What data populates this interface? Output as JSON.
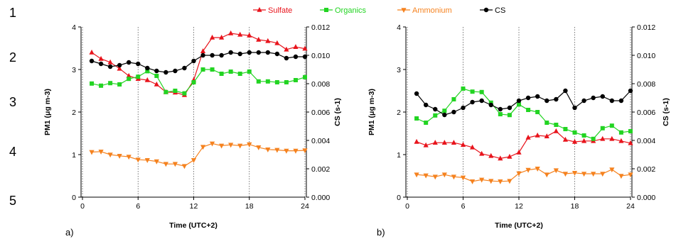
{
  "row_numbers": [
    "1",
    "2",
    "3",
    "4",
    "5"
  ],
  "legend": [
    {
      "key": "sulfate",
      "label": "Sulfate",
      "color": "#e8141c",
      "marker": "triangle-up"
    },
    {
      "key": "organics",
      "label": "Organics",
      "color": "#22d422",
      "marker": "square"
    },
    {
      "key": "ammonium",
      "label": "Ammonium",
      "color": "#f5821f",
      "marker": "triangle-down"
    },
    {
      "key": "cs",
      "label": "CS",
      "color": "#000000",
      "marker": "circle"
    }
  ],
  "chart_data": [
    {
      "type": "line",
      "panel_label": "a)",
      "xlabel": "Time (UTC+2)",
      "ylabel_left": "PM1 (μg m-3)",
      "ylabel_right": "CS (s-1)",
      "xlim": [
        0,
        24
      ],
      "ylim_left": [
        0,
        4
      ],
      "ylim_right": [
        0,
        0.012
      ],
      "x_ticks": [
        "0",
        "6",
        "12",
        "18",
        "24"
      ],
      "y_ticks_left": [
        "0",
        "1",
        "2",
        "3",
        "4"
      ],
      "y_ticks_right": [
        "0.000",
        "0.002",
        "0.004",
        "0.006",
        "0.008",
        "0.010",
        "0.012"
      ],
      "vertical_dotted_lines_at": [
        6,
        12,
        18,
        24
      ],
      "x": [
        1,
        2,
        3,
        4,
        5,
        6,
        7,
        8,
        9,
        10,
        11,
        12,
        13,
        14,
        15,
        16,
        17,
        18,
        19,
        20,
        21,
        22,
        23,
        24
      ],
      "series": [
        {
          "name": "Sulfate",
          "axis": "left",
          "values": [
            3.4,
            3.25,
            3.17,
            3.02,
            2.85,
            2.78,
            2.75,
            2.65,
            2.47,
            2.46,
            2.4,
            2.75,
            3.43,
            3.75,
            3.75,
            3.85,
            3.82,
            3.8,
            3.7,
            3.67,
            3.62,
            3.47,
            3.53,
            3.49
          ]
        },
        {
          "name": "Organics",
          "axis": "left",
          "values": [
            2.67,
            2.62,
            2.68,
            2.65,
            2.78,
            2.83,
            2.96,
            2.85,
            2.47,
            2.5,
            2.44,
            2.7,
            3.0,
            3.0,
            2.9,
            2.95,
            2.9,
            2.95,
            2.72,
            2.72,
            2.7,
            2.7,
            2.75,
            2.82
          ]
        },
        {
          "name": "Ammonium",
          "axis": "left",
          "values": [
            1.06,
            1.07,
            1.0,
            0.97,
            0.95,
            0.88,
            0.87,
            0.84,
            0.78,
            0.78,
            0.73,
            0.87,
            1.18,
            1.26,
            1.21,
            1.23,
            1.21,
            1.24,
            1.17,
            1.12,
            1.11,
            1.09,
            1.09,
            1.1
          ]
        },
        {
          "name": "CS",
          "axis": "right",
          "values": [
            0.0096,
            0.0094,
            0.0092,
            0.0093,
            0.0095,
            0.0094,
            0.0091,
            0.0089,
            0.0088,
            0.0089,
            0.0091,
            0.0096,
            0.01,
            0.01,
            0.01,
            0.0102,
            0.0101,
            0.0102,
            0.0102,
            0.0102,
            0.0101,
            0.0098,
            0.0099,
            0.0099
          ]
        }
      ]
    },
    {
      "type": "line",
      "panel_label": "b)",
      "xlabel": "Time (UTC+2)",
      "ylabel_left": "PM1 (μg m-3)",
      "ylabel_right": "CS (s-1)",
      "xlim": [
        0,
        24
      ],
      "ylim_left": [
        0,
        4
      ],
      "ylim_right": [
        0,
        0.012
      ],
      "x_ticks": [
        "0",
        "6",
        "12",
        "18",
        "24"
      ],
      "y_ticks_left": [
        "0",
        "1",
        "2",
        "3",
        "4"
      ],
      "y_ticks_right": [
        "0.000",
        "0.002",
        "0.004",
        "0.006",
        "0.008",
        "0.010",
        "0.012"
      ],
      "vertical_dotted_lines_at": [
        6,
        12,
        18,
        24
      ],
      "x": [
        1,
        2,
        3,
        4,
        5,
        6,
        7,
        8,
        9,
        10,
        11,
        12,
        13,
        14,
        15,
        16,
        17,
        18,
        19,
        20,
        21,
        22,
        23,
        24
      ],
      "series": [
        {
          "name": "Sulfate",
          "axis": "left",
          "values": [
            1.3,
            1.22,
            1.28,
            1.28,
            1.28,
            1.23,
            1.17,
            1.02,
            0.97,
            0.91,
            0.95,
            1.05,
            1.4,
            1.45,
            1.43,
            1.55,
            1.35,
            1.3,
            1.32,
            1.32,
            1.37,
            1.37,
            1.32,
            1.27
          ]
        },
        {
          "name": "Organics",
          "axis": "left",
          "values": [
            1.85,
            1.75,
            1.92,
            2.03,
            2.3,
            2.55,
            2.48,
            2.47,
            2.22,
            1.95,
            1.93,
            2.18,
            2.05,
            2.0,
            1.75,
            1.7,
            1.6,
            1.52,
            1.45,
            1.37,
            1.62,
            1.68,
            1.52,
            1.55
          ]
        },
        {
          "name": "Ammonium",
          "axis": "left",
          "values": [
            0.53,
            0.51,
            0.48,
            0.53,
            0.48,
            0.46,
            0.37,
            0.41,
            0.38,
            0.37,
            0.38,
            0.56,
            0.64,
            0.67,
            0.53,
            0.63,
            0.55,
            0.57,
            0.55,
            0.55,
            0.55,
            0.65,
            0.5,
            0.53
          ]
        },
        {
          "name": "CS",
          "axis": "right",
          "values": [
            0.0073,
            0.0065,
            0.0062,
            0.0058,
            0.006,
            0.0063,
            0.0067,
            0.0068,
            0.0065,
            0.0062,
            0.0063,
            0.0068,
            0.007,
            0.0071,
            0.0068,
            0.0069,
            0.0075,
            0.0063,
            0.0068,
            0.007,
            0.0071,
            0.0068,
            0.0068,
            0.0075
          ]
        }
      ]
    }
  ]
}
